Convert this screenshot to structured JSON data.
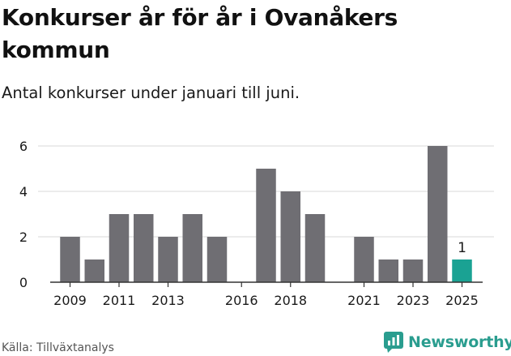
{
  "header": {
    "title": "Konkurser år för år i Ovanåkers kommun",
    "subtitle": "Antal konkurser under januari till juni."
  },
  "footer": {
    "source": "Källa: Tillväxtanalys",
    "brand": "Newsworthy",
    "brand_icon": "newsworthy-logo-icon"
  },
  "colors": {
    "bar": "#6f6e73",
    "highlight": "#1aa293",
    "grid": "#d9d9d9",
    "axis": "#333333",
    "brand": "#2a9d8f"
  },
  "chart_data": {
    "type": "bar",
    "title": "Konkurser år för år i Ovanåkers kommun",
    "subtitle": "Antal konkurser under januari till juni.",
    "xlabel": "",
    "ylabel": "",
    "categories": [
      "2009",
      "2010",
      "2011",
      "2012",
      "2013",
      "2014",
      "2015",
      "2016",
      "2017",
      "2018",
      "2019",
      "2020",
      "2021",
      "2022",
      "2023",
      "2024",
      "2025"
    ],
    "values": [
      2,
      1,
      3,
      3,
      2,
      3,
      2,
      0,
      5,
      4,
      3,
      0,
      2,
      1,
      1,
      6,
      1
    ],
    "x_tick_labels": [
      "2009",
      "2011",
      "2013",
      "2016",
      "2018",
      "2021",
      "2023",
      "2025"
    ],
    "y_ticks": [
      0,
      2,
      4,
      6
    ],
    "ylim": [
      0,
      6.4
    ],
    "grid": true,
    "highlight": {
      "category": "2025",
      "label": "1"
    }
  }
}
